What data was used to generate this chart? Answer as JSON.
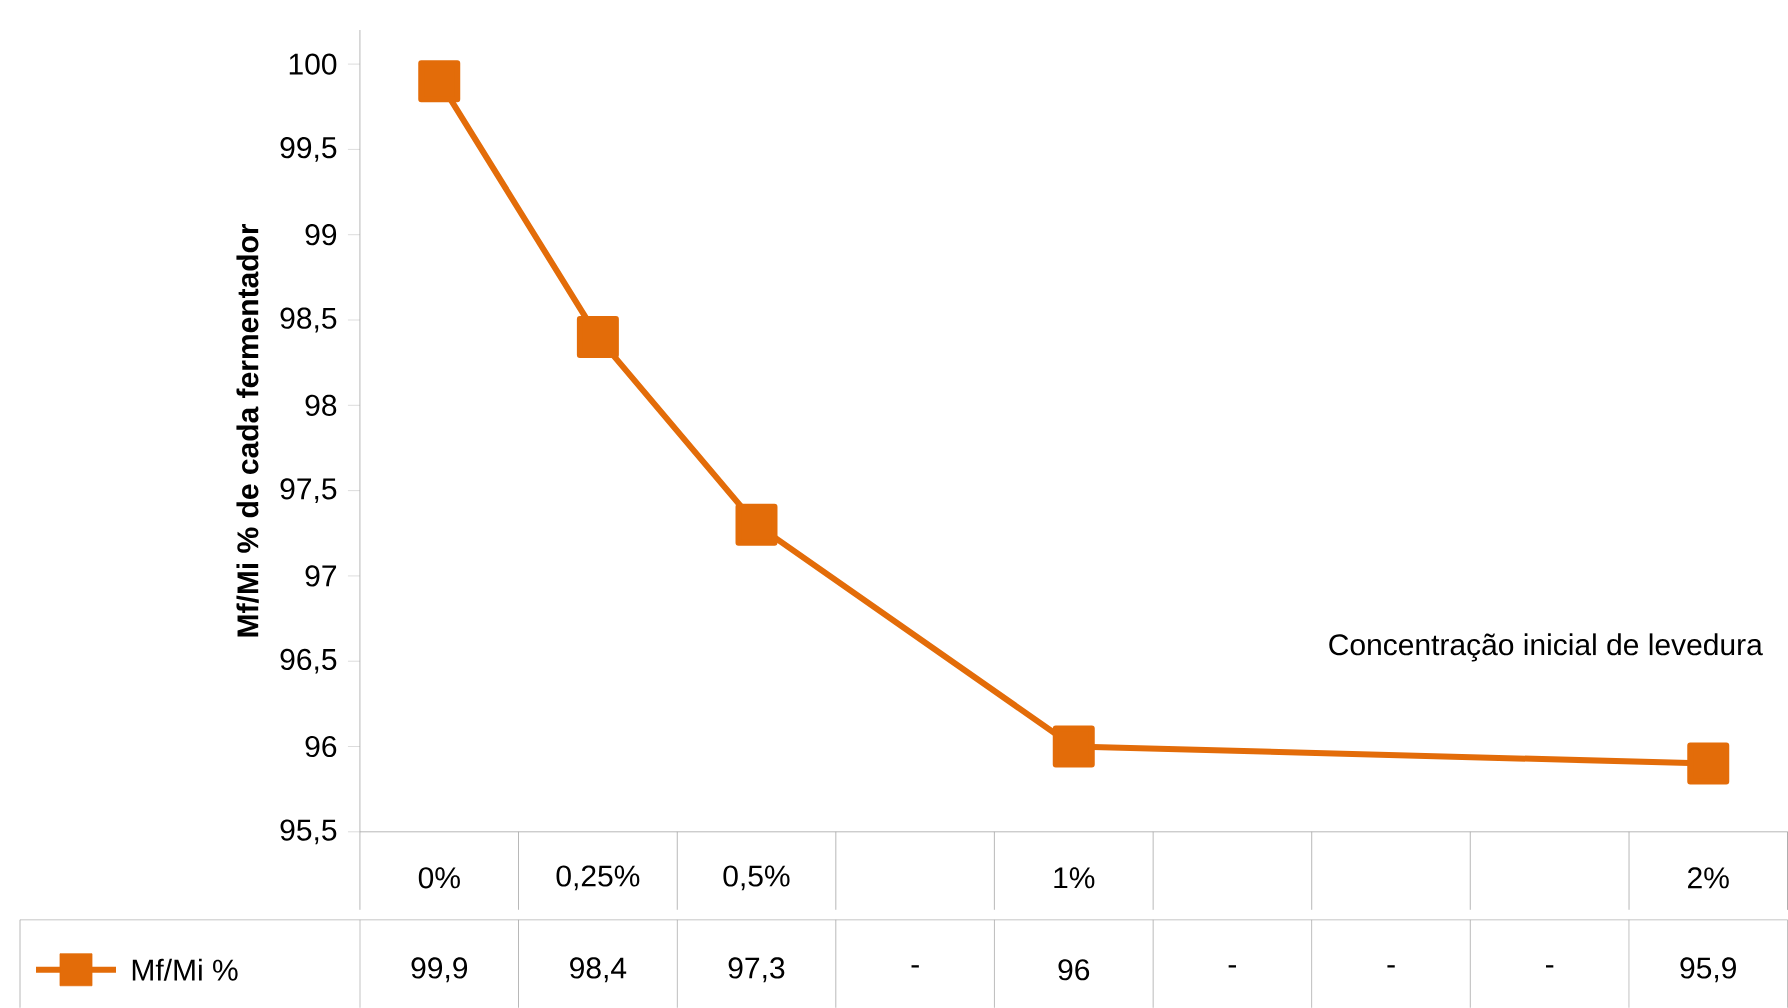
{
  "chart_data": {
    "type": "line",
    "ylabel": "Mf/Mi % de cada fermentador",
    "annotations": [
      "Concentração inicial de levedura"
    ],
    "categories": [
      "0%",
      "0,25%",
      "0,5%",
      null,
      "1%",
      null,
      null,
      null,
      "2%"
    ],
    "series": [
      {
        "name": "Mf/Mi %",
        "color": "#e36c09",
        "values": [
          99.9,
          98.4,
          97.3,
          null,
          96,
          null,
          null,
          null,
          95.9
        ],
        "value_labels": [
          "99,9",
          "98,4",
          "97,3",
          "-",
          "96",
          "-",
          "-",
          "-",
          "95,9"
        ]
      }
    ],
    "ylim": [
      95.5,
      100.2
    ],
    "yticks": [
      {
        "value": 95.5,
        "label": "95,5"
      },
      96,
      {
        "value": 96.5,
        "label": "96,5"
      },
      97,
      {
        "value": 97.5,
        "label": "97,5"
      },
      98,
      {
        "value": 98.5,
        "label": "98,5"
      },
      99,
      {
        "value": 99.5,
        "label": "99,5"
      },
      100
    ],
    "marker": "square",
    "line_style": "solid",
    "grid": false,
    "legend": "bottom"
  }
}
